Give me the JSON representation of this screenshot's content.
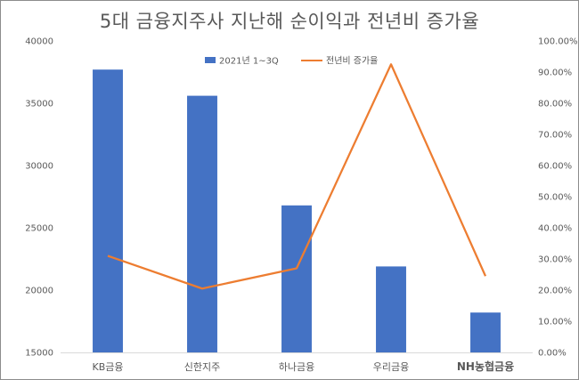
{
  "chart_data": {
    "type": "bar",
    "title": "5대 금융지주사 지난해 순이익과 전년비 증가율",
    "categories": [
      "KB금융",
      "신한지주",
      "하나금융",
      "우리금융",
      "NH농협금융"
    ],
    "category_colors": [
      "#595959",
      "#595959",
      "#595959",
      "#595959",
      "#ff0000"
    ],
    "highlight_category": "NH농협금융",
    "series": [
      {
        "name": "2021년 1~3Q",
        "type": "bar",
        "axis": "left",
        "color": "#4472c4",
        "values": [
          37700,
          35600,
          26800,
          21900,
          18200
        ]
      },
      {
        "name": "전년비 증가율",
        "type": "line",
        "axis": "right",
        "color": "#ed7d31",
        "values": [
          0.31,
          0.205,
          0.27,
          0.925,
          0.245
        ]
      }
    ],
    "left_axis": {
      "ylim": [
        15000,
        40000
      ],
      "ticks": [
        "15000",
        "20000",
        "25000",
        "30000",
        "35000",
        "40000"
      ],
      "tick_values": [
        15000,
        20000,
        25000,
        30000,
        35000,
        40000
      ]
    },
    "right_axis": {
      "ylim": [
        0,
        1
      ],
      "ticks": [
        "0.00%",
        "10.00%",
        "20.00%",
        "30.00%",
        "40.00%",
        "50.00%",
        "60.00%",
        "70.00%",
        "80.00%",
        "90.00%",
        "100.00%"
      ],
      "tick_values": [
        0,
        0.1,
        0.2,
        0.3,
        0.4,
        0.5,
        0.6,
        0.7,
        0.8,
        0.9,
        1.0
      ]
    },
    "legend": {
      "position": "top-center"
    },
    "grid": false
  }
}
